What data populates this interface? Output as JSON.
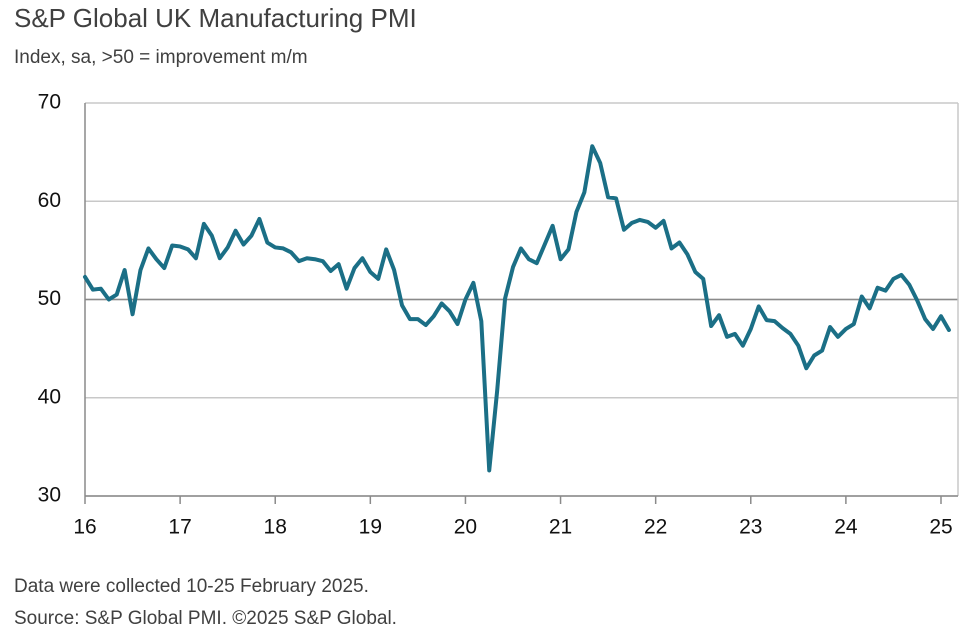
{
  "chart_data": {
    "type": "line",
    "title": "S&P Global UK Manufacturing PMI",
    "subtitle": "Index, sa, >50 = improvement m/m",
    "notes": [
      "Data were collected 10-25 February 2025.",
      "Source: S&P Global PMI. ©2025 S&P Global."
    ],
    "categories": [
      "16",
      null,
      null,
      null,
      null,
      null,
      null,
      null,
      null,
      null,
      null,
      null,
      "17",
      null,
      null,
      null,
      null,
      null,
      null,
      null,
      null,
      null,
      null,
      null,
      "18",
      null,
      null,
      null,
      null,
      null,
      null,
      null,
      null,
      null,
      null,
      null,
      "19",
      null,
      null,
      null,
      null,
      null,
      null,
      null,
      null,
      null,
      null,
      null,
      "20",
      null,
      null,
      null,
      null,
      null,
      null,
      null,
      null,
      null,
      null,
      null,
      "21",
      null,
      null,
      null,
      null,
      null,
      null,
      null,
      null,
      null,
      null,
      null,
      "22",
      null,
      null,
      null,
      null,
      null,
      null,
      null,
      null,
      null,
      null,
      null,
      "23",
      null,
      null,
      null,
      null,
      null,
      null,
      null,
      null,
      null,
      null,
      null,
      "24",
      null,
      null,
      null,
      null,
      null,
      null,
      null,
      null,
      null,
      null,
      null,
      "25",
      null
    ],
    "values": [
      52.3,
      51.0,
      51.1,
      50.0,
      50.5,
      53.0,
      48.5,
      53.0,
      55.2,
      54.1,
      53.2,
      55.5,
      55.4,
      55.1,
      54.2,
      57.7,
      56.5,
      54.2,
      55.3,
      57.0,
      55.6,
      56.5,
      58.2,
      55.8,
      55.3,
      55.2,
      54.8,
      53.9,
      54.2,
      54.1,
      53.9,
      52.9,
      53.6,
      51.1,
      53.2,
      54.2,
      52.8,
      52.1,
      55.1,
      53.0,
      49.4,
      48.0,
      48.0,
      47.4,
      48.3,
      49.6,
      48.8,
      47.5,
      50.0,
      51.7,
      47.8,
      32.6,
      40.7,
      50.1,
      53.3,
      55.2,
      54.1,
      53.7,
      55.6,
      57.5,
      54.1,
      55.1,
      58.9,
      60.9,
      65.6,
      63.9,
      60.4,
      60.3,
      57.1,
      57.8,
      58.1,
      57.9,
      57.3,
      58.0,
      55.2,
      55.8,
      54.6,
      52.8,
      52.1,
      47.3,
      48.4,
      46.2,
      46.5,
      45.3,
      47.0,
      49.3,
      47.9,
      47.8,
      47.1,
      46.5,
      45.3,
      43.0,
      44.3,
      44.8,
      47.2,
      46.2,
      47.0,
      47.5,
      50.3,
      49.1,
      51.2,
      50.9,
      52.1,
      52.5,
      51.5,
      49.9,
      48.0,
      47.0,
      48.3,
      46.9
    ],
    "color": "#1b6f86",
    "ylim": [
      30,
      70
    ],
    "yticks": [
      30,
      40,
      50,
      60,
      70
    ],
    "grid": true
  }
}
